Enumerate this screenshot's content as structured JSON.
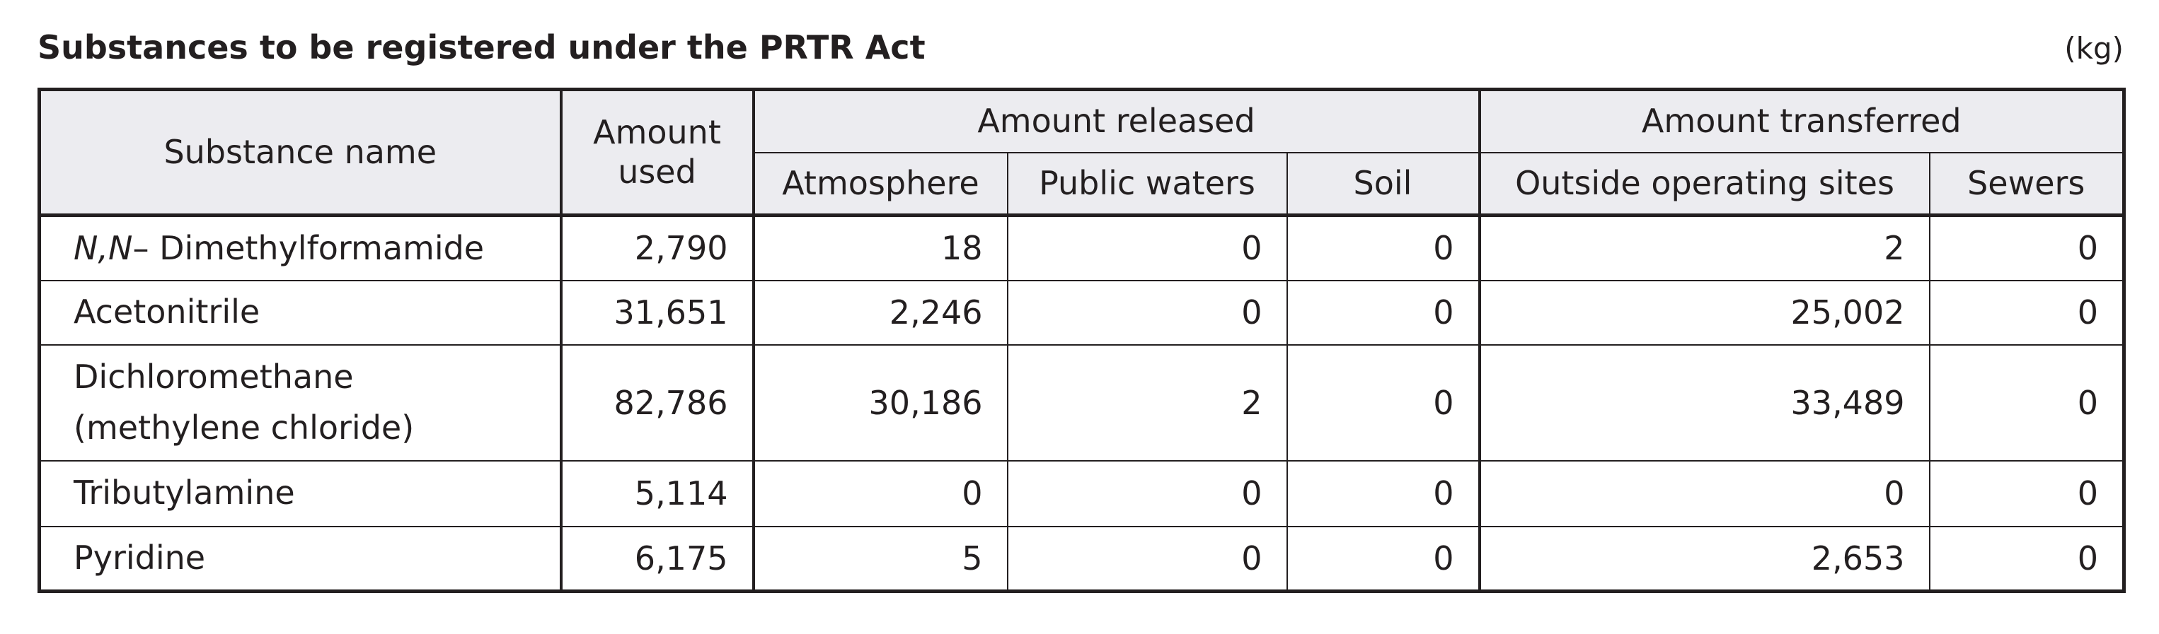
{
  "header": {
    "title": "Substances to be registered under the PRTR Act",
    "unit": "(kg)"
  },
  "table": {
    "headers": {
      "substance": "Substance name",
      "amount_used": "Amount\nused",
      "released": "Amount released",
      "transferred": "Amount transferred",
      "sub": [
        "Atmosphere",
        "Public waters",
        "Soil",
        "Outside operating sites",
        "Sewers"
      ]
    },
    "rows": [
      {
        "name": {
          "italic": "N,N",
          "text": "– Dimethylformamide"
        },
        "cells": [
          "2,790",
          "18",
          "0",
          "0",
          "2",
          "0"
        ]
      },
      {
        "name": "Acetonitrile",
        "cells": [
          "31,651",
          "2,246",
          "0",
          "0",
          "25,002",
          "0"
        ]
      },
      {
        "name": "Dichloromethane\n(methylene chloride)",
        "cells": [
          "82,786",
          "30,186",
          "2",
          "0",
          "33,489",
          "0"
        ]
      },
      {
        "name": "Tributylamine",
        "cells": [
          "5,114",
          "0",
          "0",
          "0",
          "0",
          "0"
        ]
      },
      {
        "name": "Pyridine",
        "cells": [
          "6,175",
          "5",
          "0",
          "0",
          "2,653",
          "0"
        ]
      }
    ]
  }
}
